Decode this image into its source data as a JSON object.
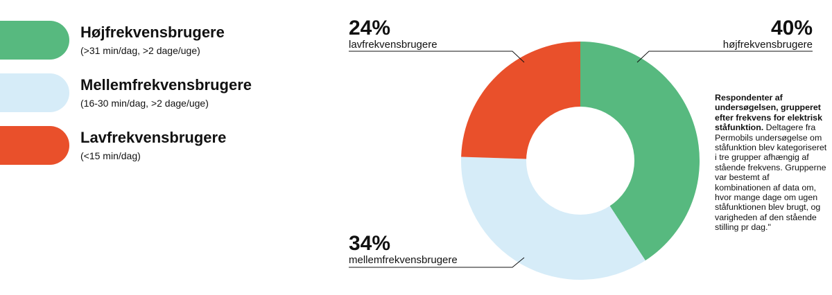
{
  "legend": {
    "items": [
      {
        "name": "Højfrekvensbrugere",
        "desc": "(>31 min/dag, >2 dage/uge)",
        "color": "#57b97f"
      },
      {
        "name": "Mellemfrekvensbrugere",
        "desc": "(16-30 min/dag, >2 dage/uge)",
        "color": "#d6ecf8"
      },
      {
        "name": "Lavfrekvensbrugere",
        "desc": "(<15 min/dag)",
        "color": "#e9502b"
      }
    ]
  },
  "chart_data": {
    "type": "pie",
    "donut": true,
    "slices": [
      {
        "label": "højfrekvensbrugere",
        "pct_text": "40%",
        "value": 40,
        "color": "#57b97f"
      },
      {
        "label": "mellemfrekvensbrugere",
        "pct_text": "34%",
        "value": 34,
        "color": "#d6ecf8"
      },
      {
        "label": "lavfrekvensbrugere",
        "pct_text": "24%",
        "value": 24,
        "color": "#e9502b"
      }
    ]
  },
  "caption": {
    "title": "Respondenter af undersøgelsen, grupperet efter frekvens for elektrisk ståfunktion.",
    "body": " Deltagere fra Permobils undersøgelse om ståfunktion blev kategoriseret i tre grupper afhængig af stående frekvens. Grupperne var bestemt af kombinationen af data om, hvor mange dage om ugen ståfunktionen blev brugt, og varigheden af den stående stilling pr dag.\""
  }
}
